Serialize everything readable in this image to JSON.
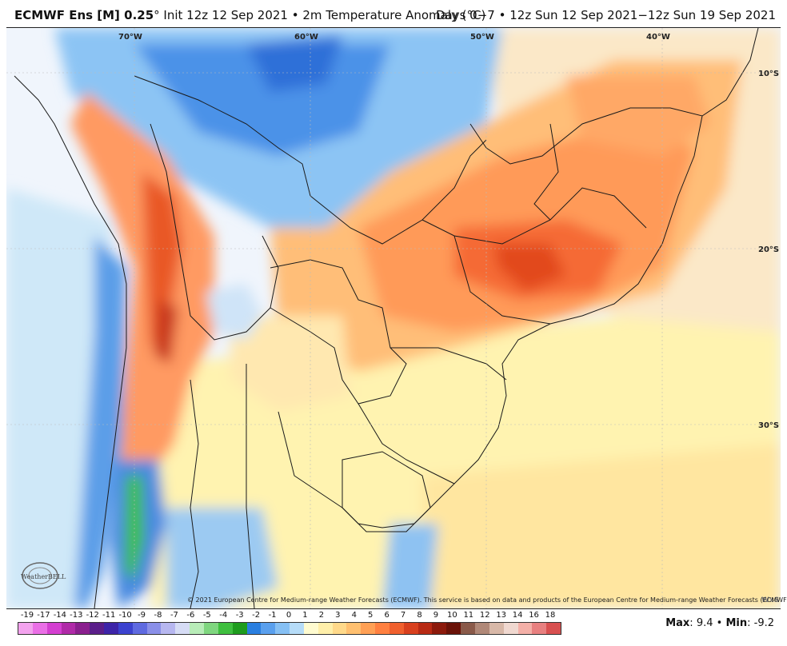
{
  "header": {
    "model": "ECMWF Ens [M] 0.25",
    "degree": "°",
    "init": "Init 12z 12 Sep 2021",
    "bullet": "•",
    "field": "2m Temperature Anomaly (°C)",
    "right": "Days 0−7 • 12z Sun 12 Sep 2021−12z Sun 19 Sep 2021"
  },
  "map": {
    "lon_labels": [
      "70°W",
      "60°W",
      "50°W",
      "40°W"
    ],
    "lat_labels": [
      "10°S",
      "20°S",
      "30°S"
    ],
    "copyright": "© 2021 European Centre for Medium-range Weather Forecasts (ECMWF). This service is based on data and products of the European Centre for Medium-range Weather Forecasts (ECMWF).",
    "logo_text": "WeatherBELL",
    "logo_corner": "WxS"
  },
  "colorbar": {
    "labels": [
      "-19",
      "-17",
      "-14",
      "-13",
      "-12",
      "-11",
      "-10",
      "-9",
      "-8",
      "-7",
      "-6",
      "-5",
      "-4",
      "-3",
      "-2",
      "-1",
      "0",
      "1",
      "2",
      "3",
      "4",
      "5",
      "6",
      "7",
      "8",
      "9",
      "10",
      "11",
      "12",
      "13",
      "14",
      "16",
      "18"
    ],
    "colors": [
      "#f3a3ee",
      "#ea6fe6",
      "#d43fd1",
      "#b02aa8",
      "#8a1f8e",
      "#5b1e8a",
      "#3d24a8",
      "#3c42cf",
      "#5f6ae0",
      "#8a8fe8",
      "#b7b7f0",
      "#d6dcf5",
      "#b8ecb8",
      "#7fd67f",
      "#3fbf3f",
      "#1e9c1e",
      "#2a7fe0",
      "#5aa0ee",
      "#86c0f4",
      "#b6dcf8",
      "#fffbd0",
      "#ffefaa",
      "#ffd98a",
      "#ffc070",
      "#ffa055",
      "#ff8040",
      "#f0602e",
      "#d8401e",
      "#b82a14",
      "#8c1a0c",
      "#6a1208",
      "#8a5a4a",
      "#b08878",
      "#d8b8a8",
      "#f0d8d0",
      "#f4b0a8",
      "#e88080",
      "#d85050"
    ]
  },
  "stats": {
    "max_label": "Max",
    "max_value": "9.4",
    "min_label": "Min",
    "min_value": "-9.2",
    "separator": "•"
  }
}
